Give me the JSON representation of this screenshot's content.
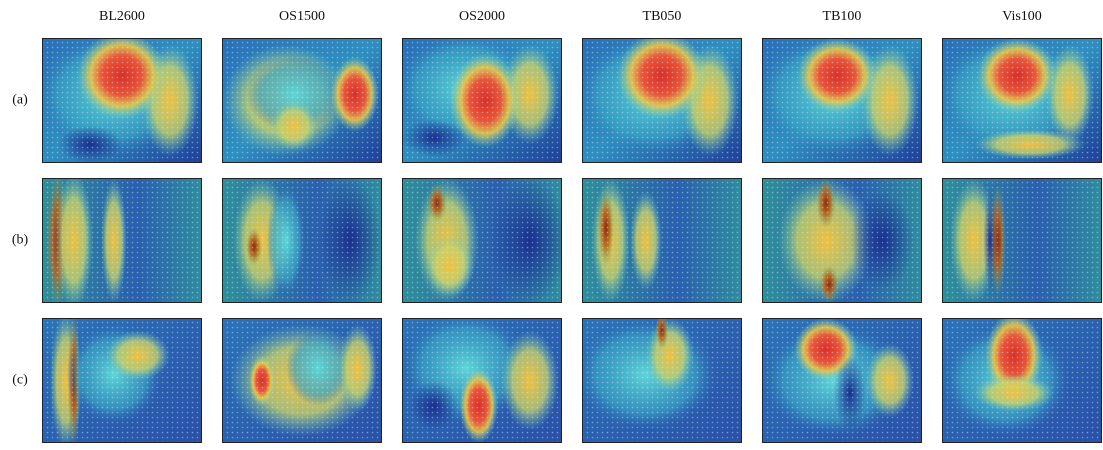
{
  "columns": [
    "BL2600",
    "OS1500",
    "OS2000",
    "TB050",
    "TB100",
    "Vis100"
  ],
  "rows": [
    "(a)",
    "(b)",
    "(c)"
  ]
}
